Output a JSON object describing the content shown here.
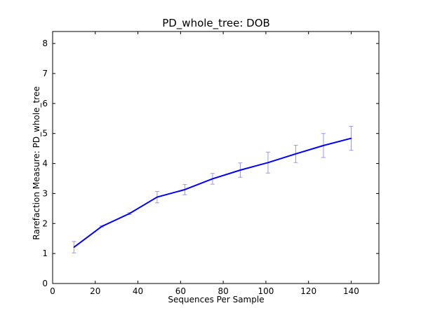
{
  "chart_data": {
    "type": "line",
    "title": "PD_whole_tree: DOB",
    "xlabel": "Sequences Per Sample",
    "ylabel": "Rarefaction Measure: PD_whole_tree",
    "xlim": [
      0,
      153
    ],
    "ylim": [
      0,
      8.4
    ],
    "xticks": [
      0,
      20,
      40,
      60,
      80,
      100,
      120,
      140
    ],
    "yticks": [
      0,
      1,
      2,
      3,
      4,
      5,
      6,
      7,
      8
    ],
    "grid": false,
    "colors": {
      "line": "#0000ff",
      "errorbar": "#9999ee",
      "axes": "#000000"
    },
    "series": [
      {
        "x": [
          10,
          23,
          36,
          49,
          62,
          75,
          88,
          101,
          114,
          127,
          140
        ],
        "y": [
          1.21,
          1.9,
          2.33,
          2.88,
          3.13,
          3.49,
          3.78,
          4.03,
          4.32,
          4.6,
          4.84
        ],
        "err": [
          0.19,
          0.02,
          0.03,
          0.19,
          0.17,
          0.18,
          0.24,
          0.35,
          0.29,
          0.4,
          0.4
        ]
      }
    ]
  }
}
